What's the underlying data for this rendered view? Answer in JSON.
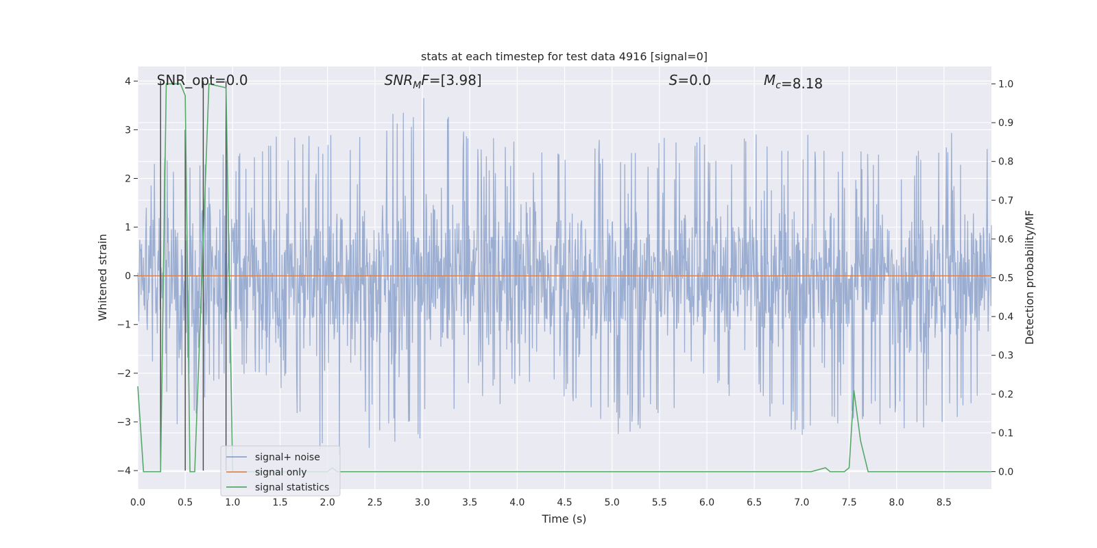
{
  "chart_data": {
    "type": "line",
    "title": "stats at each timestep for test data 4916 [signal=0]",
    "xlabel": "Time (s)",
    "ylabel_left": "Whitened strain",
    "ylabel_right": "Detection probability/MF",
    "xlim": [
      0.0,
      9.0
    ],
    "ylim_left": [
      -4.38,
      4.3
    ],
    "ylim_right": [
      -0.045,
      1.045
    ],
    "x_ticks": [
      0.0,
      0.5,
      1.0,
      1.5,
      2.0,
      2.5,
      3.0,
      3.5,
      4.0,
      4.5,
      5.0,
      5.5,
      6.0,
      6.5,
      7.0,
      7.5,
      8.0,
      8.5
    ],
    "x_tick_labels": [
      "0.0",
      "0.5",
      "1.0",
      "1.5",
      "2.0",
      "2.5",
      "3.0",
      "3.5",
      "4.0",
      "4.5",
      "5.0",
      "5.5",
      "6.0",
      "6.5",
      "7.0",
      "7.5",
      "8.0",
      "8.5"
    ],
    "y_left_ticks": [
      -4,
      -3,
      -2,
      -1,
      0,
      1,
      2,
      3,
      4
    ],
    "y_left_tick_labels": [
      "−4",
      "−3",
      "−2",
      "−1",
      "0",
      "1",
      "2",
      "3",
      "4"
    ],
    "y_right_ticks": [
      0.0,
      0.1,
      0.2,
      0.3,
      0.4,
      0.5,
      0.6,
      0.7,
      0.8,
      0.9,
      1.0
    ],
    "y_right_tick_labels": [
      "0.0",
      "0.1",
      "0.2",
      "0.3",
      "0.4",
      "0.5",
      "0.6",
      "0.7",
      "0.8",
      "0.9",
      "1.0"
    ],
    "grid": true,
    "legend_position": "lower-left",
    "annotations": [
      {
        "text": "SNR_opt=0.0",
        "x": 0.2
      },
      {
        "text": "SNR_MF=[3.98]",
        "x": 2.6
      },
      {
        "text": "S=0.0",
        "x": 5.6
      },
      {
        "text": "M_c=8.18",
        "x": 6.6
      }
    ],
    "series": [
      {
        "name": "signal+ noise",
        "axis": "left",
        "color": "#4c72b0",
        "note": "whitened strain time series",
        "envelope": {
          "x": [
            0.0,
            0.5,
            1.0,
            1.5,
            2.0,
            2.5,
            3.0,
            3.5,
            4.0,
            4.5,
            5.0,
            5.5,
            6.0,
            6.5,
            7.0,
            7.5,
            8.0,
            8.5,
            9.0
          ],
          "max": [
            2.3,
            2.6,
            2.5,
            2.9,
            3.0,
            3.1,
            3.9,
            2.9,
            2.8,
            2.8,
            3.0,
            2.9,
            3.0,
            3.0,
            3.0,
            2.6,
            2.5,
            2.9,
            3.25
          ],
          "min": [
            -3.1,
            -3.2,
            -2.0,
            -2.3,
            -3.9,
            -3.5,
            -3.5,
            -2.8,
            -2.6,
            -2.8,
            -3.3,
            -3.1,
            -2.6,
            -2.8,
            -3.3,
            -3.0,
            -3.4,
            -3.1,
            -2.5
          ]
        }
      },
      {
        "name": "signal only",
        "axis": "left",
        "color": "#dd8452",
        "x": [
          0.0,
          9.0
        ],
        "y": [
          0.0,
          0.0
        ]
      },
      {
        "name": "signal statistics",
        "axis": "right",
        "color": "#55a868",
        "x": [
          0.0,
          0.06,
          0.24,
          0.3,
          0.45,
          0.5,
          0.55,
          0.6,
          0.75,
          0.93,
          1.0,
          2.0,
          2.05,
          2.1,
          7.1,
          7.25,
          7.3,
          7.45,
          7.5,
          7.55,
          7.62,
          7.7,
          7.75,
          9.0
        ],
        "y": [
          0.22,
          0.0,
          0.0,
          1.0,
          1.0,
          0.97,
          0.0,
          0.0,
          1.0,
          0.99,
          0.0,
          0.0,
          0.01,
          0.0,
          0.0,
          0.01,
          0.0,
          0.0,
          0.01,
          0.21,
          0.08,
          0.0,
          0.0,
          0.0
        ]
      }
    ],
    "vertical_lines": [
      {
        "x": 0.24,
        "from": -4.0,
        "to": 4.0,
        "color": "#444444"
      },
      {
        "x": 0.5,
        "from": -4.0,
        "to": 3.0,
        "color": "#444444"
      },
      {
        "x": 0.69,
        "from": -4.0,
        "to": 4.0,
        "color": "#444444"
      },
      {
        "x": 0.93,
        "from": -4.0,
        "to": 4.0,
        "color": "#444444"
      }
    ]
  }
}
